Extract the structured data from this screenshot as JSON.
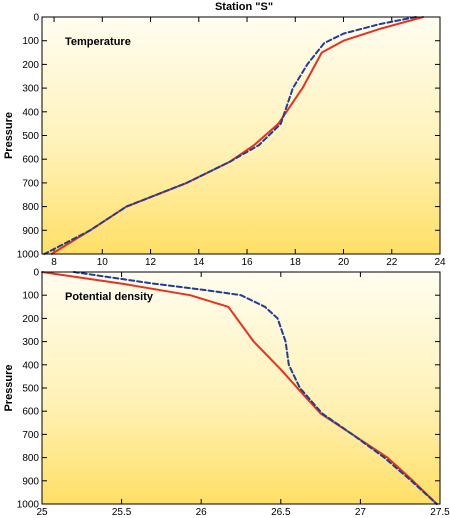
{
  "figure_title": "Station \"S\"",
  "chart_data": [
    {
      "type": "line",
      "annotation": "Temperature",
      "xlabel": "",
      "ylabel": "Pressure",
      "xlim": [
        7.5,
        24
      ],
      "ylim": [
        1000,
        0
      ],
      "y_inverted": true,
      "xticks": [
        8,
        10,
        12,
        14,
        16,
        18,
        20,
        22,
        24
      ],
      "yticks": [
        0,
        100,
        200,
        300,
        400,
        500,
        600,
        700,
        800,
        900,
        1000
      ],
      "grid": false,
      "background": "yellow-gradient",
      "series": [
        {
          "color": "#e8321e",
          "style": "solid",
          "points": [
            [
              23.3,
              0
            ],
            [
              21.5,
              50
            ],
            [
              20.0,
              100
            ],
            [
              19.1,
              150
            ],
            [
              18.3,
              300
            ],
            [
              17.3,
              450
            ],
            [
              16.3,
              540
            ],
            [
              15.3,
              610
            ],
            [
              13.5,
              700
            ],
            [
              11.0,
              800
            ],
            [
              9.5,
              900
            ],
            [
              7.9,
              1000
            ]
          ]
        },
        {
          "color": "#1f3d99",
          "style": "dashed",
          "points": [
            [
              23.0,
              0
            ],
            [
              21.5,
              30
            ],
            [
              20.0,
              70
            ],
            [
              19.2,
              110
            ],
            [
              18.5,
              200
            ],
            [
              17.9,
              300
            ],
            [
              17.4,
              450
            ],
            [
              16.5,
              540
            ],
            [
              15.3,
              610
            ],
            [
              13.5,
              700
            ],
            [
              11.0,
              800
            ],
            [
              9.5,
              900
            ],
            [
              7.6,
              1000
            ]
          ]
        }
      ]
    },
    {
      "type": "line",
      "annotation": "Potential density",
      "xlabel": "",
      "ylabel": "Pressure",
      "xlim": [
        25,
        27.5
      ],
      "ylim": [
        1000,
        0
      ],
      "y_inverted": true,
      "xticks": [
        25,
        25.5,
        26,
        26.5,
        27,
        27.5
      ],
      "xtick_labels": [
        "25",
        "25.5",
        "26",
        "26.5",
        "27",
        "27.5"
      ],
      "yticks": [
        0,
        100,
        200,
        300,
        400,
        500,
        600,
        700,
        800,
        900,
        1000
      ],
      "grid": false,
      "background": "yellow-gradient",
      "series": [
        {
          "color": "#e8321e",
          "style": "solid",
          "points": [
            [
              25.0,
              0
            ],
            [
              25.5,
              50
            ],
            [
              25.93,
              100
            ],
            [
              26.17,
              150
            ],
            [
              26.33,
              300
            ],
            [
              26.5,
              420
            ],
            [
              26.63,
              520
            ],
            [
              26.75,
              610
            ],
            [
              26.95,
              700
            ],
            [
              27.17,
              800
            ],
            [
              27.33,
              900
            ],
            [
              27.48,
              1000
            ]
          ]
        },
        {
          "color": "#1f3d99",
          "style": "dashed",
          "points": [
            [
              25.2,
              0
            ],
            [
              25.7,
              50
            ],
            [
              26.05,
              80
            ],
            [
              26.25,
              100
            ],
            [
              26.4,
              150
            ],
            [
              26.48,
              200
            ],
            [
              26.53,
              300
            ],
            [
              26.55,
              400
            ],
            [
              26.62,
              500
            ],
            [
              26.76,
              610
            ],
            [
              26.95,
              700
            ],
            [
              27.15,
              800
            ],
            [
              27.32,
              900
            ],
            [
              27.48,
              1000
            ]
          ]
        }
      ]
    }
  ]
}
